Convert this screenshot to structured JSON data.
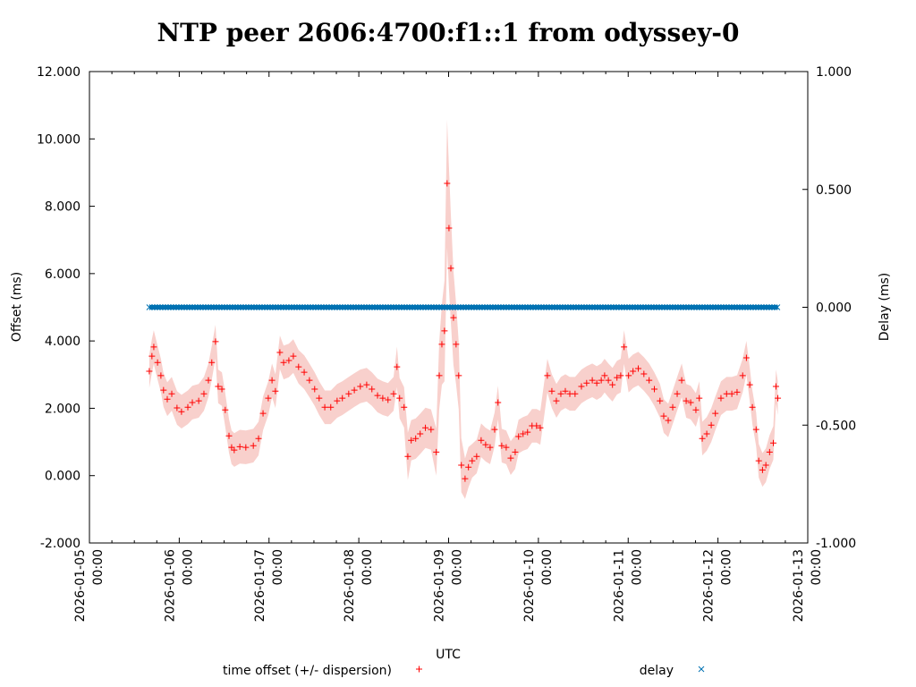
{
  "chart_data": {
    "type": "scatter",
    "title": "NTP peer 2606:4700:f1::1 from odyssey-0",
    "xlabel": "UTC",
    "ylabel": "Offset (ms)",
    "y2label": "Delay (ms)",
    "x_unit": "hours since 2026-01-05 00:00 UTC",
    "xlim": [
      0,
      192
    ],
    "ylim": [
      -2,
      12
    ],
    "y2lim": [
      -1,
      1
    ],
    "x_ticks": [
      {
        "h": 0,
        "date": "2026-01-05",
        "time": "00:00"
      },
      {
        "h": 24,
        "date": "2026-01-06",
        "time": "00:00"
      },
      {
        "h": 48,
        "date": "2026-01-07",
        "time": "00:00"
      },
      {
        "h": 72,
        "date": "2026-01-08",
        "time": "00:00"
      },
      {
        "h": 96,
        "date": "2026-01-09",
        "time": "00:00"
      },
      {
        "h": 120,
        "date": "2026-01-10",
        "time": "00:00"
      },
      {
        "h": 144,
        "date": "2026-01-11",
        "time": "00:00"
      },
      {
        "h": 168,
        "date": "2026-01-12",
        "time": "00:00"
      },
      {
        "h": 192,
        "date": "2026-01-13",
        "time": "00:00"
      }
    ],
    "y_ticks": [
      {
        "v": -2,
        "label": "-2.000"
      },
      {
        "v": 0,
        "label": "0.000"
      },
      {
        "v": 2,
        "label": "2.000"
      },
      {
        "v": 4,
        "label": "4.000"
      },
      {
        "v": 6,
        "label": "6.000"
      },
      {
        "v": 8,
        "label": "8.000"
      },
      {
        "v": 10,
        "label": "10.000"
      },
      {
        "v": 12,
        "label": "12.000"
      }
    ],
    "y2_ticks": [
      {
        "v": -1,
        "label": "-1.000"
      },
      {
        "v": -0.5,
        "label": "-0.500"
      },
      {
        "v": 0,
        "label": "0.000"
      },
      {
        "v": 0.5,
        "label": "0.500"
      },
      {
        "v": 1,
        "label": "1.000"
      }
    ],
    "legend": {
      "placement": "bottom",
      "offset_label": "time offset (+/- dispersion)",
      "delay_label": "delay"
    },
    "colors": {
      "offset": "#ff0000",
      "band": "#f8d0cc",
      "delay": "#0072b2"
    },
    "series": [
      {
        "name": "time offset (+/- dispersion)",
        "points": [
          [
            16.0,
            3.1,
            0.5
          ],
          [
            16.7,
            3.55,
            0.5
          ],
          [
            17.2,
            3.82,
            0.5
          ],
          [
            18.2,
            3.36,
            0.5
          ],
          [
            19.1,
            2.97,
            0.5
          ],
          [
            19.8,
            2.54,
            0.5
          ],
          [
            20.8,
            2.27,
            0.5
          ],
          [
            22.0,
            2.43,
            0.5
          ],
          [
            23.4,
            2.01,
            0.5
          ],
          [
            24.6,
            1.9,
            0.5
          ],
          [
            26.3,
            2.03,
            0.5
          ],
          [
            27.5,
            2.17,
            0.5
          ],
          [
            29.2,
            2.22,
            0.5
          ],
          [
            30.6,
            2.43,
            0.5
          ],
          [
            31.8,
            2.83,
            0.5
          ],
          [
            32.7,
            3.36,
            0.5
          ],
          [
            33.7,
            3.98,
            0.5
          ],
          [
            34.4,
            2.65,
            0.5
          ],
          [
            35.4,
            2.57,
            0.5
          ],
          [
            36.3,
            1.95,
            0.5
          ],
          [
            37.3,
            1.18,
            0.5
          ],
          [
            38.0,
            0.84,
            0.5
          ],
          [
            38.7,
            0.76,
            0.5
          ],
          [
            40.2,
            0.86,
            0.5
          ],
          [
            41.8,
            0.84,
            0.5
          ],
          [
            43.8,
            0.89,
            0.5
          ],
          [
            45.2,
            1.1,
            0.5
          ],
          [
            46.4,
            1.85,
            0.5
          ],
          [
            47.8,
            2.3,
            0.5
          ],
          [
            48.8,
            2.83,
            0.5
          ],
          [
            49.7,
            2.51,
            0.5
          ],
          [
            50.9,
            3.66,
            0.5
          ],
          [
            51.9,
            3.36,
            0.5
          ],
          [
            53.3,
            3.42,
            0.5
          ],
          [
            54.5,
            3.55,
            0.5
          ],
          [
            55.9,
            3.23,
            0.5
          ],
          [
            57.4,
            3.07,
            0.5
          ],
          [
            58.8,
            2.83,
            0.5
          ],
          [
            60.2,
            2.57,
            0.5
          ],
          [
            61.4,
            2.3,
            0.5
          ],
          [
            62.9,
            2.03,
            0.5
          ],
          [
            64.5,
            2.03,
            0.5
          ],
          [
            66.2,
            2.22,
            0.5
          ],
          [
            67.6,
            2.3,
            0.5
          ],
          [
            69.3,
            2.43,
            0.5
          ],
          [
            70.8,
            2.54,
            0.5
          ],
          [
            72.4,
            2.65,
            0.5
          ],
          [
            74.1,
            2.7,
            0.5
          ],
          [
            75.5,
            2.57,
            0.5
          ],
          [
            77.0,
            2.38,
            0.5
          ],
          [
            78.4,
            2.3,
            0.5
          ],
          [
            79.8,
            2.25,
            0.5
          ],
          [
            81.3,
            2.43,
            0.5
          ],
          [
            82.2,
            3.23,
            0.6
          ],
          [
            82.9,
            2.3,
            0.6
          ],
          [
            84.1,
            2.03,
            0.6
          ],
          [
            85.1,
            0.57,
            0.7
          ],
          [
            86.0,
            1.05,
            0.6
          ],
          [
            87.2,
            1.1,
            0.6
          ],
          [
            88.4,
            1.24,
            0.6
          ],
          [
            89.8,
            1.42,
            0.6
          ],
          [
            91.3,
            1.37,
            0.6
          ],
          [
            92.7,
            0.7,
            0.7
          ],
          [
            93.5,
            2.97,
            1.0
          ],
          [
            94.2,
            3.9,
            1.2
          ],
          [
            94.9,
            4.3,
            1.5
          ],
          [
            95.6,
            8.68,
            1.9
          ],
          [
            96.1,
            7.35,
            1.8
          ],
          [
            96.6,
            6.16,
            1.6
          ],
          [
            97.3,
            4.69,
            1.4
          ],
          [
            98.0,
            3.9,
            1.2
          ],
          [
            98.7,
            2.97,
            1.0
          ],
          [
            99.4,
            0.31,
            0.8
          ],
          [
            100.4,
            -0.09,
            0.6
          ],
          [
            101.3,
            0.25,
            0.6
          ],
          [
            102.3,
            0.44,
            0.5
          ],
          [
            103.5,
            0.57,
            0.5
          ],
          [
            104.7,
            1.05,
            0.5
          ],
          [
            105.9,
            0.92,
            0.5
          ],
          [
            107.1,
            0.84,
            0.5
          ],
          [
            108.3,
            1.37,
            0.5
          ],
          [
            109.2,
            2.17,
            0.5
          ],
          [
            110.2,
            0.89,
            0.5
          ],
          [
            111.4,
            0.84,
            0.5
          ],
          [
            112.6,
            0.52,
            0.5
          ],
          [
            113.8,
            0.7,
            0.5
          ],
          [
            114.7,
            1.16,
            0.5
          ],
          [
            115.9,
            1.24,
            0.5
          ],
          [
            117.1,
            1.29,
            0.5
          ],
          [
            118.3,
            1.48,
            0.5
          ],
          [
            119.5,
            1.48,
            0.5
          ],
          [
            120.5,
            1.42,
            0.5
          ],
          [
            122.4,
            2.97,
            0.5
          ],
          [
            123.6,
            2.51,
            0.5
          ],
          [
            124.8,
            2.22,
            0.5
          ],
          [
            126.0,
            2.43,
            0.5
          ],
          [
            127.2,
            2.51,
            0.5
          ],
          [
            128.4,
            2.43,
            0.5
          ],
          [
            129.8,
            2.43,
            0.5
          ],
          [
            131.5,
            2.65,
            0.5
          ],
          [
            132.9,
            2.75,
            0.5
          ],
          [
            134.4,
            2.83,
            0.5
          ],
          [
            135.6,
            2.75,
            0.5
          ],
          [
            136.8,
            2.83,
            0.5
          ],
          [
            137.7,
            2.97,
            0.5
          ],
          [
            138.7,
            2.83,
            0.5
          ],
          [
            139.8,
            2.7,
            0.5
          ],
          [
            141.0,
            2.91,
            0.5
          ],
          [
            142.0,
            2.97,
            0.5
          ],
          [
            142.9,
            3.82,
            0.5
          ],
          [
            144.1,
            2.97,
            0.5
          ],
          [
            145.3,
            3.1,
            0.5
          ],
          [
            146.7,
            3.18,
            0.5
          ],
          [
            148.2,
            3.02,
            0.5
          ],
          [
            149.6,
            2.83,
            0.5
          ],
          [
            151.0,
            2.57,
            0.5
          ],
          [
            152.5,
            2.22,
            0.5
          ],
          [
            153.5,
            1.77,
            0.5
          ],
          [
            154.7,
            1.64,
            0.5
          ],
          [
            155.9,
            2.03,
            0.5
          ],
          [
            157.1,
            2.43,
            0.5
          ],
          [
            158.3,
            2.83,
            0.5
          ],
          [
            159.5,
            2.22,
            0.5
          ],
          [
            160.7,
            2.17,
            0.5
          ],
          [
            162.1,
            1.95,
            0.5
          ],
          [
            163.0,
            2.3,
            0.5
          ],
          [
            163.8,
            1.1,
            0.5
          ],
          [
            165.0,
            1.24,
            0.5
          ],
          [
            166.2,
            1.5,
            0.5
          ],
          [
            167.3,
            1.85,
            0.5
          ],
          [
            168.8,
            2.3,
            0.5
          ],
          [
            170.3,
            2.43,
            0.5
          ],
          [
            171.7,
            2.43,
            0.5
          ],
          [
            173.1,
            2.48,
            0.5
          ],
          [
            174.6,
            2.97,
            0.5
          ],
          [
            175.6,
            3.5,
            0.5
          ],
          [
            176.5,
            2.7,
            0.5
          ],
          [
            177.2,
            2.03,
            0.5
          ],
          [
            178.2,
            1.37,
            0.5
          ],
          [
            178.9,
            0.44,
            0.5
          ],
          [
            179.9,
            0.17,
            0.5
          ],
          [
            180.8,
            0.31,
            0.5
          ],
          [
            181.8,
            0.7,
            0.5
          ],
          [
            182.8,
            0.97,
            0.5
          ],
          [
            183.5,
            2.65,
            0.5
          ],
          [
            184.0,
            2.3,
            0.5
          ]
        ]
      },
      {
        "name": "delay",
        "axis": "y2",
        "constant_value": 0.0,
        "x_range": [
          16.0,
          184.0
        ]
      }
    ]
  }
}
